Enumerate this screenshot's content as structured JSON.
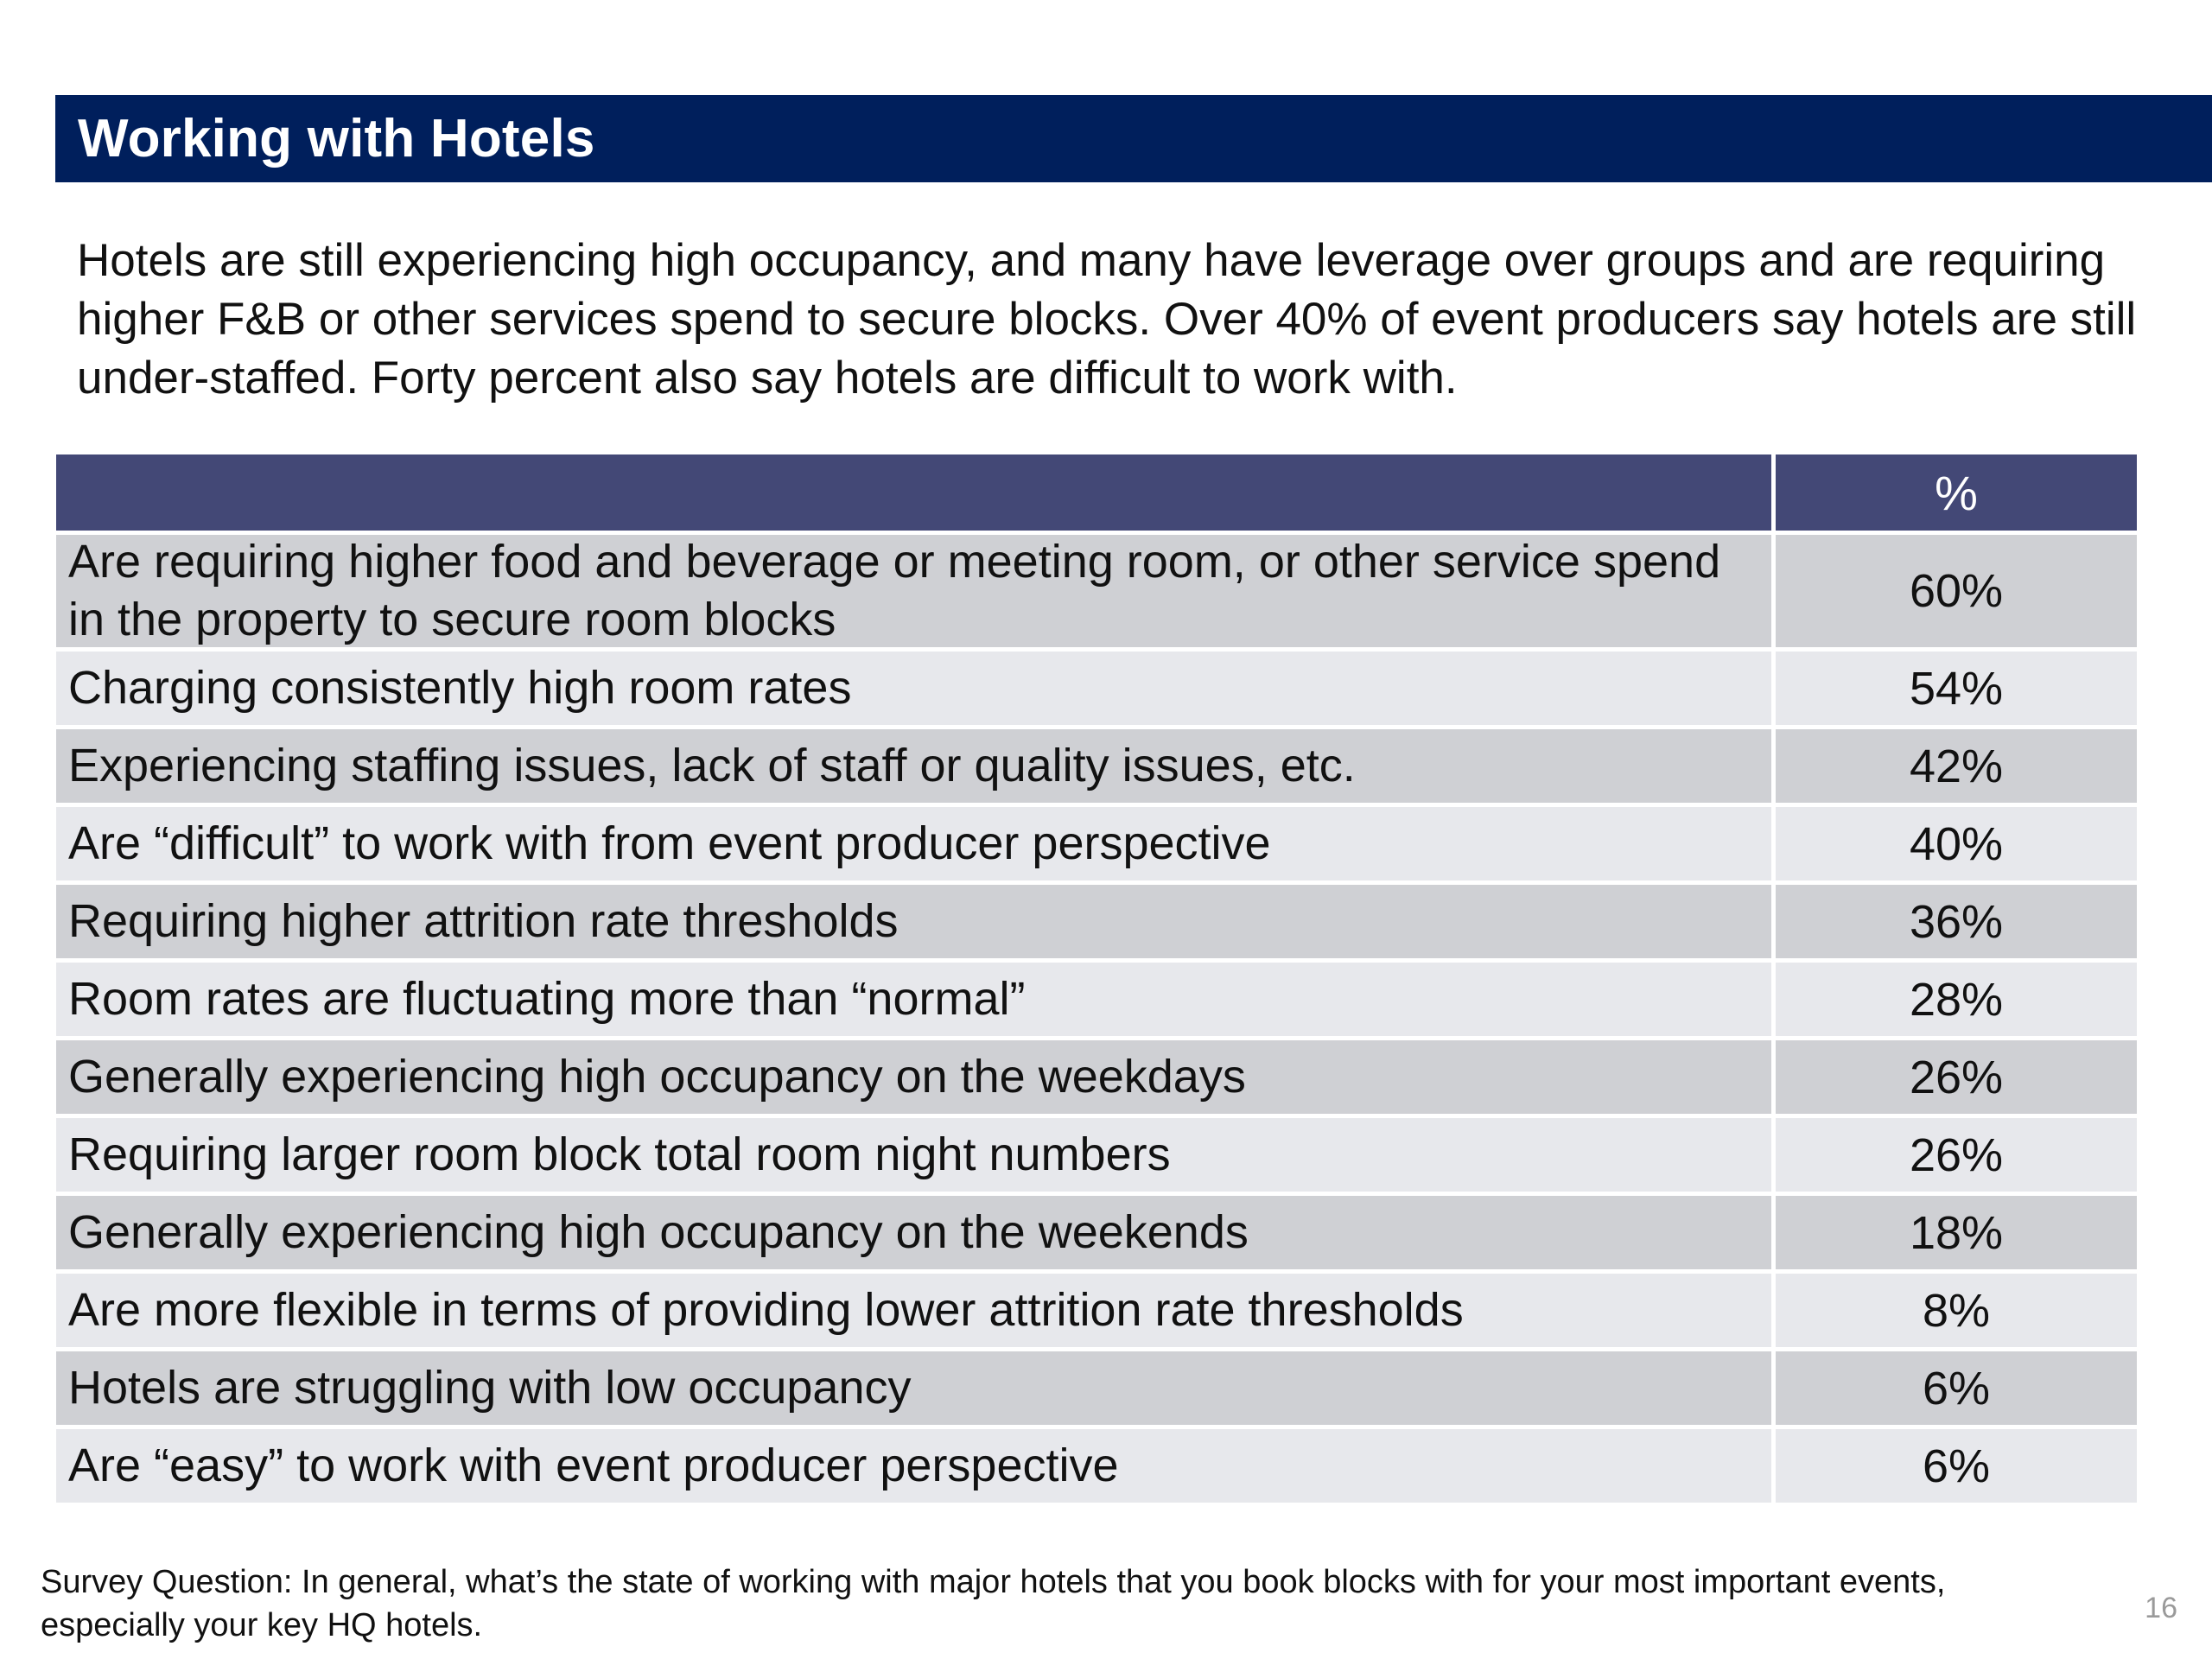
{
  "slide": {
    "title": "Working with Hotels",
    "intro": "Hotels are still experiencing high occupancy, and many have leverage over groups and are requiring higher F&B or other services spend to secure blocks. Over 40% of event producers say hotels are still under-staffed. Forty percent also say hotels are difficult to work with.",
    "footnote": "Survey Question: In general, what’s the state of working with major hotels that you book blocks with for your most important events, especially your key HQ hotels.",
    "page_number": "16"
  },
  "table": {
    "header": {
      "label": "",
      "value": "%"
    },
    "rows": [
      {
        "label": "Are requiring higher food and beverage or meeting room, or other service spend in the property to secure room blocks",
        "value": "60%"
      },
      {
        "label": "Charging consistently high room rates",
        "value": "54%"
      },
      {
        "label": "Experiencing staffing issues, lack of staff or quality issues, etc.",
        "value": "42%"
      },
      {
        "label": "Are “difficult” to work with from event producer perspective",
        "value": "40%"
      },
      {
        "label": "Requiring higher attrition rate thresholds",
        "value": "36%"
      },
      {
        "label": "Room rates are fluctuating more than “normal”",
        "value": "28%"
      },
      {
        "label": "Generally experiencing high occupancy on the weekdays",
        "value": "26%"
      },
      {
        "label": "Requiring larger room block total room night numbers",
        "value": "26%"
      },
      {
        "label": "Generally experiencing high occupancy on the weekends",
        "value": "18%"
      },
      {
        "label": "Are more flexible in terms of providing lower attrition rate thresholds",
        "value": "8%"
      },
      {
        "label": "Hotels are struggling with low occupancy",
        "value": "6%"
      },
      {
        "label": "Are “easy” to work with event producer perspective",
        "value": "6%"
      }
    ]
  },
  "colors": {
    "title_bar": "#001f5c",
    "table_header": "#434876",
    "row_dark": "#cfd0d4",
    "row_light": "#e7e8ec"
  }
}
